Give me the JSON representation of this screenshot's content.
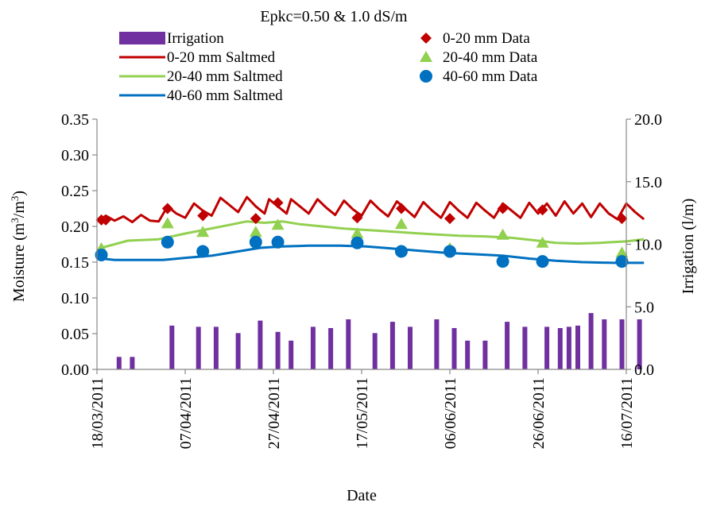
{
  "chart_data": {
    "type": "line",
    "title": "Epkc=0.50 & 1.0 dS/m",
    "xlabel": "Date",
    "ylabel_left": "Moisture (m³/m³)",
    "ylabel_left_parts": [
      "Moisture (m",
      "3",
      "/m",
      "3",
      ")"
    ],
    "ylabel_right": "Irrigation (l/m)",
    "x_ticks": [
      "18/03/2011",
      "07/04/2011",
      "27/04/2011",
      "17/05/2011",
      "06/06/2011",
      "26/06/2011",
      "16/07/2011"
    ],
    "xlim": [
      "18/03/2011",
      "16/07/2011"
    ],
    "ylim_left": [
      0,
      0.35
    ],
    "ylim_right": [
      0,
      20
    ],
    "y_ticks_left": [
      "0.00",
      "0.05",
      "0.10",
      "0.15",
      "0.20",
      "0.25",
      "0.30",
      "0.35"
    ],
    "y_ticks_right": [
      "0.0",
      "5.0",
      "10.0",
      "15.0",
      "20.0"
    ],
    "grid": false,
    "legend_position": "top",
    "colors": {
      "irrigation": "#7030a0",
      "d0_20": "#c00000",
      "d20_40": "#92d050",
      "d40_60": "#0070c0"
    },
    "legend": [
      {
        "key": "irrigation",
        "label": "Irrigation",
        "symbol": "bar"
      },
      {
        "key": "sat_0_20",
        "label": "0-20 mm Saltmed",
        "symbol": "line",
        "color": "#c00000"
      },
      {
        "key": "sat_20_40",
        "label": "20-40 mm Saltmed",
        "symbol": "line",
        "color": "#92d050"
      },
      {
        "key": "sat_40_60",
        "label": "40-60 mm Saltmed",
        "symbol": "line",
        "color": "#0070c0"
      },
      {
        "key": "data_0_20",
        "label": "0-20 mm Data",
        "symbol": "diamond",
        "color": "#c00000"
      },
      {
        "key": "data_20_40",
        "label": "20-40 mm Data",
        "symbol": "triangle",
        "color": "#92d050"
      },
      {
        "key": "data_40_60",
        "label": "40-60 mm Data",
        "symbol": "circle",
        "color": "#0070c0"
      }
    ],
    "irrigation": [
      [
        "23/03/2011",
        1.0
      ],
      [
        "26/03/2011",
        1.0
      ],
      [
        "04/04/2011",
        3.5
      ],
      [
        "10/04/2011",
        3.4
      ],
      [
        "14/04/2011",
        3.4
      ],
      [
        "19/04/2011",
        2.9
      ],
      [
        "24/04/2011",
        3.9
      ],
      [
        "28/04/2011",
        3.0
      ],
      [
        "01/05/2011",
        2.3
      ],
      [
        "06/05/2011",
        3.4
      ],
      [
        "10/05/2011",
        3.3
      ],
      [
        "14/05/2011",
        4.0
      ],
      [
        "20/05/2011",
        2.9
      ],
      [
        "24/05/2011",
        3.8
      ],
      [
        "28/05/2011",
        3.4
      ],
      [
        "03/06/2011",
        4.0
      ],
      [
        "07/06/2011",
        3.3
      ],
      [
        "10/06/2011",
        2.3
      ],
      [
        "14/06/2011",
        2.3
      ],
      [
        "19/06/2011",
        3.8
      ],
      [
        "23/06/2011",
        3.4
      ],
      [
        "28/06/2011",
        3.4
      ],
      [
        "01/07/2011",
        3.3
      ],
      [
        "03/07/2011",
        3.4
      ],
      [
        "05/07/2011",
        3.5
      ],
      [
        "08/07/2011",
        4.5
      ],
      [
        "11/07/2011",
        4.0
      ],
      [
        "15/07/2011",
        4.0
      ],
      [
        "19/07/2011",
        4.0
      ]
    ],
    "series": [
      {
        "name": "0-20 mm Saltmed",
        "key": "sat_0_20",
        "values": [
          [
            "19/03/2011",
            0.21
          ],
          [
            "20/03/2011",
            0.215
          ],
          [
            "22/03/2011",
            0.208
          ],
          [
            "24/03/2011",
            0.214
          ],
          [
            "26/03/2011",
            0.206
          ],
          [
            "28/03/2011",
            0.216
          ],
          [
            "30/03/2011",
            0.208
          ],
          [
            "01/04/2011",
            0.207
          ],
          [
            "03/04/2011",
            0.228
          ],
          [
            "05/04/2011",
            0.218
          ],
          [
            "07/04/2011",
            0.212
          ],
          [
            "09/04/2011",
            0.232
          ],
          [
            "11/04/2011",
            0.222
          ],
          [
            "13/04/2011",
            0.215
          ],
          [
            "15/04/2011",
            0.24
          ],
          [
            "17/04/2011",
            0.23
          ],
          [
            "19/04/2011",
            0.22
          ],
          [
            "21/04/2011",
            0.241
          ],
          [
            "23/04/2011",
            0.228
          ],
          [
            "25/04/2011",
            0.218
          ],
          [
            "26/04/2011",
            0.238
          ],
          [
            "28/04/2011",
            0.228
          ],
          [
            "30/04/2011",
            0.218
          ],
          [
            "01/05/2011",
            0.238
          ],
          [
            "03/05/2011",
            0.228
          ],
          [
            "05/05/2011",
            0.218
          ],
          [
            "07/05/2011",
            0.238
          ],
          [
            "09/05/2011",
            0.226
          ],
          [
            "11/05/2011",
            0.216
          ],
          [
            "13/05/2011",
            0.236
          ],
          [
            "15/05/2011",
            0.224
          ],
          [
            "17/05/2011",
            0.215
          ],
          [
            "19/05/2011",
            0.236
          ],
          [
            "21/05/2011",
            0.224
          ],
          [
            "23/05/2011",
            0.214
          ],
          [
            "25/05/2011",
            0.235
          ],
          [
            "27/05/2011",
            0.224
          ],
          [
            "29/05/2011",
            0.213
          ],
          [
            "31/05/2011",
            0.234
          ],
          [
            "02/06/2011",
            0.222
          ],
          [
            "04/06/2011",
            0.212
          ],
          [
            "06/06/2011",
            0.234
          ],
          [
            "08/06/2011",
            0.222
          ],
          [
            "10/06/2011",
            0.212
          ],
          [
            "12/06/2011",
            0.233
          ],
          [
            "14/06/2011",
            0.222
          ],
          [
            "16/06/2011",
            0.212
          ],
          [
            "18/06/2011",
            0.232
          ],
          [
            "20/06/2011",
            0.222
          ],
          [
            "22/06/2011",
            0.212
          ],
          [
            "24/06/2011",
            0.233
          ],
          [
            "26/06/2011",
            0.218
          ],
          [
            "28/06/2011",
            0.232
          ],
          [
            "30/06/2011",
            0.215
          ],
          [
            "02/07/2011",
            0.235
          ],
          [
            "04/07/2011",
            0.218
          ],
          [
            "06/07/2011",
            0.232
          ],
          [
            "08/07/2011",
            0.213
          ],
          [
            "10/07/2011",
            0.232
          ],
          [
            "12/07/2011",
            0.218
          ],
          [
            "14/07/2011",
            0.21
          ],
          [
            "16/07/2011",
            0.232
          ],
          [
            "18/07/2011",
            0.22
          ],
          [
            "20/07/2011",
            0.21
          ]
        ]
      },
      {
        "name": "20-40 mm Saltmed",
        "key": "sat_20_40",
        "values": [
          [
            "19/03/2011",
            0.17
          ],
          [
            "25/03/2011",
            0.18
          ],
          [
            "01/04/2011",
            0.182
          ],
          [
            "07/04/2011",
            0.19
          ],
          [
            "12/04/2011",
            0.196
          ],
          [
            "17/04/2011",
            0.202
          ],
          [
            "21/04/2011",
            0.207
          ],
          [
            "25/04/2011",
            0.205
          ],
          [
            "29/04/2011",
            0.207
          ],
          [
            "03/05/2011",
            0.203
          ],
          [
            "08/05/2011",
            0.2
          ],
          [
            "13/05/2011",
            0.197
          ],
          [
            "18/05/2011",
            0.195
          ],
          [
            "23/05/2011",
            0.193
          ],
          [
            "28/05/2011",
            0.191
          ],
          [
            "02/06/2011",
            0.189
          ],
          [
            "08/06/2011",
            0.187
          ],
          [
            "14/06/2011",
            0.186
          ],
          [
            "20/06/2011",
            0.184
          ],
          [
            "26/06/2011",
            0.18
          ],
          [
            "30/06/2011",
            0.177
          ],
          [
            "05/07/2011",
            0.176
          ],
          [
            "10/07/2011",
            0.177
          ],
          [
            "16/07/2011",
            0.179
          ],
          [
            "20/07/2011",
            0.182
          ]
        ]
      },
      {
        "name": "40-60 mm Saltmed",
        "key": "sat_40_60",
        "values": [
          [
            "19/03/2011",
            0.155
          ],
          [
            "22/03/2011",
            0.153
          ],
          [
            "28/03/2011",
            0.153
          ],
          [
            "02/04/2011",
            0.153
          ],
          [
            "07/04/2011",
            0.156
          ],
          [
            "13/04/2011",
            0.159
          ],
          [
            "19/04/2011",
            0.165
          ],
          [
            "24/04/2011",
            0.17
          ],
          [
            "29/04/2011",
            0.172
          ],
          [
            "05/05/2011",
            0.173
          ],
          [
            "12/05/2011",
            0.173
          ],
          [
            "18/05/2011",
            0.172
          ],
          [
            "24/05/2011",
            0.169
          ],
          [
            "30/05/2011",
            0.166
          ],
          [
            "05/06/2011",
            0.163
          ],
          [
            "12/06/2011",
            0.161
          ],
          [
            "18/06/2011",
            0.159
          ],
          [
            "24/06/2011",
            0.155
          ],
          [
            "30/06/2011",
            0.152
          ],
          [
            "06/07/2011",
            0.15
          ],
          [
            "13/07/2011",
            0.149
          ],
          [
            "20/07/2011",
            0.149
          ]
        ]
      }
    ],
    "points": [
      {
        "name": "0-20 mm Data",
        "key": "data_0_20",
        "marker": "diamond",
        "values": [
          [
            "19/03/2011",
            0.209
          ],
          [
            "20/03/2011",
            0.209
          ],
          [
            "03/04/2011",
            0.225
          ],
          [
            "11/04/2011",
            0.215
          ],
          [
            "23/04/2011",
            0.211
          ],
          [
            "28/04/2011",
            0.233
          ],
          [
            "16/05/2011",
            0.212
          ],
          [
            "26/05/2011",
            0.225
          ],
          [
            "06/06/2011",
            0.211
          ],
          [
            "18/06/2011",
            0.225
          ],
          [
            "27/06/2011",
            0.223
          ],
          [
            "15/07/2011",
            0.211
          ]
        ]
      },
      {
        "name": "20-40 mm Data",
        "key": "data_20_40",
        "marker": "triangle",
        "values": [
          [
            "19/03/2011",
            0.169
          ],
          [
            "03/04/2011",
            0.204
          ],
          [
            "11/04/2011",
            0.192
          ],
          [
            "23/04/2011",
            0.192
          ],
          [
            "28/04/2011",
            0.202
          ],
          [
            "16/05/2011",
            0.19
          ],
          [
            "26/05/2011",
            0.203
          ],
          [
            "06/06/2011",
            0.169
          ],
          [
            "18/06/2011",
            0.188
          ],
          [
            "27/06/2011",
            0.177
          ],
          [
            "15/07/2011",
            0.163
          ]
        ]
      },
      {
        "name": "40-60 mm Data",
        "key": "data_40_60",
        "marker": "circle",
        "values": [
          [
            "19/03/2011",
            0.16
          ],
          [
            "03/04/2011",
            0.178
          ],
          [
            "11/04/2011",
            0.165
          ],
          [
            "23/04/2011",
            0.178
          ],
          [
            "28/04/2011",
            0.178
          ],
          [
            "16/05/2011",
            0.177
          ],
          [
            "26/05/2011",
            0.165
          ],
          [
            "06/06/2011",
            0.165
          ],
          [
            "18/06/2011",
            0.151
          ],
          [
            "27/06/2011",
            0.151
          ],
          [
            "15/07/2011",
            0.151
          ]
        ]
      }
    ]
  }
}
